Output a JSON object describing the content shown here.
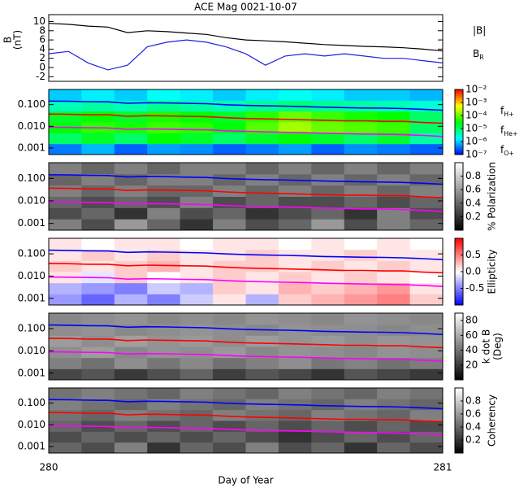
{
  "chart_data": [
    {
      "type": "line",
      "title": "ACE Mag 0021-10-07",
      "ylabel": [
        "B",
        "(nT)"
      ],
      "xlim": [
        280,
        281
      ],
      "ylim": [
        -3,
        11.5
      ],
      "yticks": [
        -2,
        0,
        2,
        4,
        6,
        8,
        10
      ],
      "x": [
        280,
        280.05,
        280.1,
        280.15,
        280.2,
        280.25,
        280.3,
        280.35,
        280.4,
        280.45,
        280.5,
        280.55,
        280.6,
        280.65,
        280.7,
        280.75,
        280.8,
        280.85,
        280.9,
        280.95,
        281
      ],
      "series": [
        {
          "name": "|B|",
          "color": "#000000",
          "values": [
            9.6,
            9.4,
            9.0,
            8.8,
            7.6,
            8.0,
            7.8,
            7.5,
            7.2,
            6.5,
            6.0,
            5.8,
            5.6,
            5.3,
            5.0,
            4.8,
            4.6,
            4.5,
            4.3,
            4.0,
            3.6
          ]
        },
        {
          "name": "BR",
          "color": "#2020e0",
          "values": [
            3.0,
            3.5,
            1.0,
            -0.5,
            0.5,
            4.5,
            5.5,
            6.0,
            5.5,
            4.5,
            3.0,
            0.5,
            2.5,
            3.0,
            2.5,
            3.0,
            2.5,
            2.0,
            2.0,
            1.5,
            1.0
          ]
        }
      ]
    },
    {
      "type": "heatmap",
      "colormap": "rainbow",
      "zlog": true,
      "zlim": [
        1e-07,
        0.01
      ],
      "zticks": [
        {
          "value": 0.01,
          "label": "10⁻²"
        },
        {
          "value": 0.001,
          "label": "10⁻³"
        },
        {
          "value": 0.0001,
          "label": "10⁻⁴"
        },
        {
          "value": 1e-05,
          "label": "10⁻⁵"
        },
        {
          "value": 1e-06,
          "label": "10⁻⁶"
        },
        {
          "value": 1e-07,
          "label": "10⁻⁷"
        }
      ],
      "xlim": [
        280,
        281
      ],
      "ylog": true,
      "ylim": [
        0.0005,
        0.5
      ],
      "yticks": [
        0.001,
        {
          "value": 0.01,
          "label": "0.010"
        },
        {
          "value": 0.1,
          "label": "0.100"
        }
      ],
      "xbins": [
        280,
        280.0833,
        280.1667,
        280.25,
        280.3333,
        280.4167,
        280.5,
        280.5833,
        280.6667,
        280.75,
        280.8333,
        280.9167,
        281
      ],
      "ybins": [
        0.0005,
        0.00158,
        0.005,
        0.0158,
        0.05,
        0.158,
        0.5
      ],
      "z": [
        [
          4e-07,
          8e-07,
          3e-07,
          6e-07,
          5e-07,
          3e-07,
          4e-07,
          6e-07,
          3e-07,
          5e-07,
          4e-07,
          3e-07
        ],
        [
          1e-05,
          2e-05,
          1e-05,
          3e-05,
          2e-05,
          1e-05,
          2e-05,
          3e-05,
          2e-05,
          1e-05,
          2e-05,
          5e-06
        ],
        [
          3e-05,
          5e-05,
          4e-05,
          6e-05,
          5e-05,
          3e-05,
          8e-05,
          0.0002,
          0.0001,
          8e-05,
          6e-05,
          1e-05
        ],
        [
          2e-05,
          3e-05,
          2e-05,
          4e-05,
          3e-05,
          2e-05,
          5e-05,
          0.0001,
          6e-05,
          4e-05,
          3e-05,
          1e-05
        ],
        [
          4e-06,
          5e-06,
          4e-06,
          6e-06,
          5e-06,
          4e-06,
          6e-06,
          8e-06,
          6e-06,
          5e-06,
          4e-06,
          3e-06
        ],
        [
          1e-06,
          1.5e-06,
          1e-06,
          2e-06,
          1.5e-06,
          1e-06,
          1.5e-06,
          2e-06,
          1.5e-06,
          1e-06,
          1e-06,
          8e-07
        ]
      ],
      "x": [
        280,
        280.05,
        280.1,
        280.15,
        280.2,
        280.25,
        280.3,
        280.35,
        280.4,
        280.45,
        280.5,
        280.55,
        280.6,
        280.65,
        280.7,
        280.75,
        280.8,
        280.85,
        280.9,
        280.95,
        281
      ],
      "series": [
        {
          "name": "fH+",
          "color": "#0000ff",
          "values": [
            0.146,
            0.143,
            0.137,
            0.134,
            0.116,
            0.122,
            0.119,
            0.114,
            0.11,
            0.099,
            0.092,
            0.088,
            0.085,
            0.081,
            0.076,
            0.073,
            0.07,
            0.069,
            0.066,
            0.061,
            0.055
          ]
        },
        {
          "name": "fHe+",
          "color": "#ff0000",
          "values": [
            0.037,
            0.036,
            0.034,
            0.034,
            0.029,
            0.031,
            0.03,
            0.029,
            0.028,
            0.025,
            0.023,
            0.022,
            0.021,
            0.02,
            0.019,
            0.018,
            0.018,
            0.017,
            0.017,
            0.015,
            0.014
          ]
        },
        {
          "name": "fO+",
          "color": "#ff00ff",
          "values": [
            0.0091,
            0.0089,
            0.0086,
            0.0084,
            0.0073,
            0.0076,
            0.0074,
            0.0071,
            0.0069,
            0.0062,
            0.0058,
            0.0055,
            0.0053,
            0.0051,
            0.0048,
            0.0046,
            0.0044,
            0.0043,
            0.0041,
            0.0038,
            0.0034
          ]
        }
      ]
    },
    {
      "type": "heatmap",
      "colormap": "gray",
      "colorbar_label": [
        "% Polarization"
      ],
      "zlim": [
        0,
        1
      ],
      "zticks": [
        0.2,
        0.4,
        0.6,
        0.8
      ],
      "xlim": [
        280,
        281
      ],
      "ylog": true,
      "ylim": [
        0.0005,
        0.5
      ],
      "yticks": [
        0.001,
        {
          "value": 0.01,
          "label": "0.010"
        },
        {
          "value": 0.1,
          "label": "0.100"
        }
      ],
      "xbins": [
        280,
        280.0833,
        280.1667,
        280.25,
        280.3333,
        280.4167,
        280.5,
        280.5833,
        280.6667,
        280.75,
        280.8333,
        280.9167,
        281
      ],
      "ybins": [
        0.0005,
        0.00158,
        0.005,
        0.0158,
        0.05,
        0.158,
        0.5
      ],
      "z": [
        [
          0.5,
          0.3,
          0.6,
          0.4,
          0.2,
          0.5,
          0.3,
          0.4,
          0.6,
          0.3,
          0.5,
          0.4
        ],
        [
          0.3,
          0.4,
          0.2,
          0.5,
          0.3,
          0.4,
          0.2,
          0.3,
          0.4,
          0.2,
          0.5,
          0.3
        ],
        [
          0.4,
          0.3,
          0.4,
          0.3,
          0.5,
          0.3,
          0.4,
          0.3,
          0.3,
          0.4,
          0.3,
          0.4
        ],
        [
          0.5,
          0.4,
          0.5,
          0.4,
          0.4,
          0.5,
          0.4,
          0.5,
          0.4,
          0.5,
          0.4,
          0.5
        ],
        [
          0.4,
          0.5,
          0.4,
          0.5,
          0.5,
          0.4,
          0.5,
          0.4,
          0.5,
          0.4,
          0.5,
          0.4
        ],
        [
          0.5,
          0.4,
          0.5,
          0.4,
          0.5,
          0.5,
          0.4,
          0.5,
          0.4,
          0.5,
          0.4,
          0.5
        ]
      ]
    },
    {
      "type": "heatmap",
      "colormap": "bwr",
      "colorbar_label": [
        "Ellipticity"
      ],
      "zlim": [
        -1,
        1
      ],
      "zticks": [
        -0.5,
        {
          "value": 0,
          "label": "0.0"
        },
        0.5
      ],
      "xlim": [
        280,
        281
      ],
      "ylog": true,
      "ylim": [
        0.0005,
        0.5
      ],
      "yticks": [
        0.001,
        {
          "value": 0.01,
          "label": "0.010"
        },
        {
          "value": 0.1,
          "label": "0.100"
        }
      ],
      "xbins": [
        280,
        280.0833,
        280.1667,
        280.25,
        280.3333,
        280.4167,
        280.5,
        280.5833,
        280.6667,
        280.75,
        280.8333,
        280.9167,
        281
      ],
      "ybins": [
        0.0005,
        0.00158,
        0.005,
        0.0158,
        0.05,
        0.158,
        0.5
      ],
      "z": [
        [
          -0.4,
          -0.6,
          -0.3,
          -0.5,
          -0.2,
          0.1,
          -0.3,
          0.2,
          0.3,
          0.4,
          0.5,
          0.2
        ],
        [
          -0.3,
          -0.4,
          -0.5,
          -0.2,
          -0.3,
          0.2,
          0.1,
          0.3,
          0.2,
          0.3,
          0.4,
          0.1
        ],
        [
          0.1,
          -0.1,
          0.2,
          0,
          0.1,
          0.2,
          0.1,
          0.2,
          0.1,
          0.2,
          0.1,
          0
        ],
        [
          0.2,
          0.1,
          0.2,
          0.3,
          0.1,
          0.2,
          0.2,
          0.1,
          0.2,
          0.1,
          0.2,
          0.1
        ],
        [
          0.1,
          0.2,
          0.1,
          0.2,
          0.1,
          0.1,
          0.2,
          0.1,
          0.1,
          0.2,
          0.1,
          0.1
        ],
        [
          0.1,
          0,
          0.1,
          0.1,
          0,
          0.1,
          0.1,
          0,
          0.1,
          0,
          0.1,
          0
        ]
      ]
    },
    {
      "type": "heatmap",
      "colormap": "gray",
      "colorbar_label": [
        "k dot B",
        "(Deg)"
      ],
      "zlim": [
        0,
        90
      ],
      "zticks": [
        20,
        40,
        60,
        80
      ],
      "xlim": [
        280,
        281
      ],
      "ylog": true,
      "ylim": [
        0.0005,
        0.5
      ],
      "yticks": [
        0.001,
        {
          "value": 0.01,
          "label": "0.010"
        },
        {
          "value": 0.1,
          "label": "0.100"
        }
      ],
      "xbins": [
        280,
        280.0833,
        280.1667,
        280.25,
        280.3333,
        280.4167,
        280.5,
        280.5833,
        280.6667,
        280.75,
        280.8333,
        280.9167,
        281
      ],
      "ybins": [
        0.0005,
        0.00158,
        0.005,
        0.0158,
        0.05,
        0.158,
        0.5
      ],
      "z": [
        [
          25,
          30,
          20,
          28,
          35,
          22,
          30,
          25,
          18,
          30,
          25,
          20
        ],
        [
          45,
          40,
          50,
          42,
          48,
          40,
          45,
          50,
          42,
          46,
          40,
          44
        ],
        [
          50,
          55,
          48,
          52,
          50,
          54,
          48,
          52,
          50,
          48,
          52,
          50
        ],
        [
          55,
          50,
          56,
          52,
          54,
          50,
          55,
          52,
          54,
          50,
          53,
          52
        ],
        [
          50,
          52,
          48,
          50,
          52,
          50,
          48,
          52,
          50,
          50,
          48,
          50
        ],
        [
          48,
          50,
          52,
          48,
          50,
          48,
          52,
          50,
          48,
          52,
          50,
          48
        ]
      ]
    },
    {
      "type": "heatmap",
      "colormap": "gray",
      "colorbar_label": [
        "Coherency"
      ],
      "zlim": [
        0,
        1
      ],
      "zticks": [
        0.2,
        0.4,
        0.6,
        0.8
      ],
      "xlim": [
        280,
        281
      ],
      "xticks": [
        280,
        281
      ],
      "xlabel": "Day of Year",
      "ylog": true,
      "ylim": [
        0.0005,
        0.5
      ],
      "yticks": [
        0.001,
        {
          "value": 0.01,
          "label": "0.010"
        },
        {
          "value": 0.1,
          "label": "0.100"
        }
      ],
      "xbins": [
        280,
        280.0833,
        280.1667,
        280.25,
        280.3333,
        280.4167,
        280.5,
        280.5833,
        280.6667,
        280.75,
        280.8333,
        280.9167,
        281
      ],
      "ybins": [
        0.0005,
        0.00158,
        0.005,
        0.0158,
        0.05,
        0.158,
        0.5
      ],
      "z": [
        [
          0.4,
          0.3,
          0.5,
          0.2,
          0.4,
          0.3,
          0.5,
          0.3,
          0.4,
          0.2,
          0.4,
          0.3
        ],
        [
          0.3,
          0.4,
          0.3,
          0.4,
          0.3,
          0.4,
          0.3,
          0.2,
          0.3,
          0.4,
          0.3,
          0.4
        ],
        [
          0.4,
          0.3,
          0.4,
          0.3,
          0.4,
          0.3,
          0.4,
          0.3,
          0.4,
          0.3,
          0.4,
          0.3
        ],
        [
          0.45,
          0.4,
          0.5,
          0.45,
          0.4,
          0.5,
          0.45,
          0.4,
          0.5,
          0.45,
          0.4,
          0.5
        ],
        [
          0.5,
          0.45,
          0.4,
          0.5,
          0.45,
          0.4,
          0.5,
          0.45,
          0.4,
          0.5,
          0.45,
          0.4
        ],
        [
          0.45,
          0.5,
          0.45,
          0.4,
          0.5,
          0.45,
          0.4,
          0.5,
          0.45,
          0.4,
          0.5,
          0.45
        ]
      ]
    }
  ]
}
